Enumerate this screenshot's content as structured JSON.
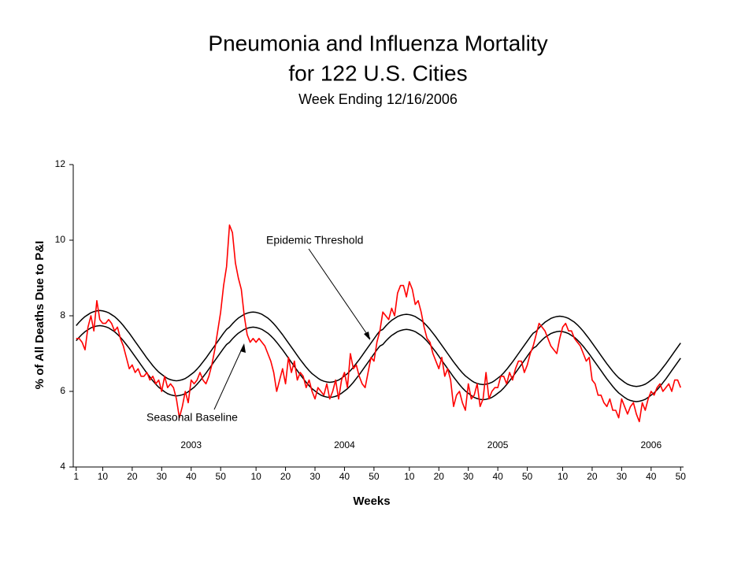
{
  "chart_data": {
    "type": "line",
    "title": [
      "Pneumonia and Influenza Mortality",
      "for 122 U.S. Cities"
    ],
    "subtitle": "Week Ending 12/16/2006",
    "x_label": "Weeks",
    "y_label": "% of All Deaths Due to P&I",
    "x_groups": [
      "2003",
      "2004",
      "2005",
      "2006"
    ],
    "x": [
      1,
      2,
      3,
      4,
      5,
      6,
      7,
      8,
      9,
      10,
      11,
      12,
      13,
      14,
      15,
      16,
      17,
      18,
      19,
      20,
      21,
      22,
      23,
      24,
      25,
      26,
      27,
      28,
      29,
      30,
      31,
      32,
      33,
      34,
      35,
      36,
      37,
      38,
      39,
      40,
      41,
      42,
      43,
      44,
      45,
      46,
      47,
      48,
      49,
      50,
      51,
      52,
      53,
      54,
      55,
      56,
      57,
      58,
      59,
      60,
      61,
      62,
      63,
      64,
      65,
      66,
      67,
      68,
      69,
      70,
      71,
      72,
      73,
      74,
      75,
      76,
      77,
      78,
      79,
      80,
      81,
      82,
      83,
      84,
      85,
      86,
      87,
      88,
      89,
      90,
      91,
      92,
      93,
      94,
      95,
      96,
      97,
      98,
      99,
      100,
      101,
      102,
      103,
      104,
      105,
      106,
      107,
      108,
      109,
      110,
      111,
      112,
      113,
      114,
      115,
      116,
      117,
      118,
      119,
      120,
      121,
      122,
      123,
      124,
      125,
      126,
      127,
      128,
      129,
      130,
      131,
      132,
      133,
      134,
      135,
      136,
      137,
      138,
      139,
      140,
      141,
      142,
      143,
      144,
      145,
      146,
      147,
      148,
      149,
      150,
      151,
      152,
      153,
      154,
      155,
      156,
      157,
      158,
      159,
      160,
      161,
      162,
      163,
      164,
      165,
      166,
      167,
      168,
      169,
      170,
      171,
      172,
      173,
      174,
      175,
      176,
      177,
      178,
      179,
      180,
      181,
      182,
      183,
      184,
      185,
      186,
      187,
      188,
      189,
      190,
      191,
      192,
      193,
      194,
      195,
      196,
      197,
      198,
      199,
      200,
      201,
      202,
      203,
      204,
      205,
      206
    ],
    "xlim": [
      0,
      207
    ],
    "xticks": [
      {
        "value": 1,
        "label": "1"
      },
      {
        "value": 10,
        "label": "10"
      },
      {
        "value": 20,
        "label": "20"
      },
      {
        "value": 30,
        "label": "30"
      },
      {
        "value": 40,
        "label": "40"
      },
      {
        "value": 50,
        "label": "50"
      },
      {
        "value": 62,
        "label": "10"
      },
      {
        "value": 72,
        "label": "20"
      },
      {
        "value": 82,
        "label": "30"
      },
      {
        "value": 92,
        "label": "40"
      },
      {
        "value": 102,
        "label": "50"
      },
      {
        "value": 114,
        "label": "10"
      },
      {
        "value": 124,
        "label": "20"
      },
      {
        "value": 134,
        "label": "30"
      },
      {
        "value": 144,
        "label": "40"
      },
      {
        "value": 154,
        "label": "50"
      },
      {
        "value": 166,
        "label": "10"
      },
      {
        "value": 176,
        "label": "20"
      },
      {
        "value": 186,
        "label": "30"
      },
      {
        "value": 196,
        "label": "40"
      },
      {
        "value": 206,
        "label": "50"
      }
    ],
    "ylim": [
      4,
      12
    ],
    "yticks": [
      4,
      6,
      8,
      10,
      12
    ],
    "grid": false,
    "series": [
      {
        "color": "#ff0000",
        "values": [
          7.4,
          7.4,
          7.3,
          7.1,
          7.7,
          8.0,
          7.6,
          8.4,
          7.9,
          7.8,
          7.8,
          7.9,
          7.8,
          7.6,
          7.7,
          7.4,
          7.2,
          6.9,
          6.6,
          6.7,
          6.5,
          6.6,
          6.4,
          6.4,
          6.5,
          6.3,
          6.4,
          6.2,
          6.3,
          6.0,
          6.4,
          6.1,
          6.2,
          6.1,
          5.8,
          5.3,
          5.6,
          6.0,
          5.7,
          6.3,
          6.2,
          6.3,
          6.5,
          6.3,
          6.2,
          6.4,
          6.7,
          7.1,
          7.6,
          8.1,
          8.8,
          9.3,
          10.4,
          10.2,
          9.4,
          9.0,
          8.7,
          8.0,
          7.5,
          7.3,
          7.4,
          7.3,
          7.4,
          7.3,
          7.2,
          7.0,
          6.8,
          6.5,
          6.0,
          6.3,
          6.6,
          6.2,
          6.9,
          6.5,
          6.8,
          6.3,
          6.5,
          6.4,
          6.1,
          6.3,
          6.0,
          5.8,
          6.1,
          6.0,
          5.9,
          6.2,
          5.8,
          6.0,
          6.3,
          5.8,
          6.3,
          6.5,
          6.1,
          7.0,
          6.6,
          6.7,
          6.4,
          6.2,
          6.1,
          6.5,
          6.9,
          6.8,
          7.3,
          7.6,
          8.1,
          8.0,
          7.9,
          8.2,
          8.0,
          8.6,
          8.8,
          8.8,
          8.5,
          8.9,
          8.7,
          8.3,
          8.4,
          8.1,
          7.7,
          7.4,
          7.3,
          7.0,
          6.8,
          6.6,
          6.9,
          6.4,
          6.6,
          6.3,
          5.6,
          5.9,
          6.0,
          5.7,
          5.5,
          6.2,
          5.8,
          5.9,
          6.2,
          5.6,
          5.8,
          6.5,
          5.8,
          6.0,
          6.1,
          6.1,
          6.4,
          6.4,
          6.2,
          6.5,
          6.3,
          6.6,
          6.8,
          6.8,
          6.5,
          6.7,
          7.0,
          7.2,
          7.5,
          7.8,
          7.7,
          7.6,
          7.4,
          7.2,
          7.1,
          7.0,
          7.4,
          7.7,
          7.8,
          7.6,
          7.6,
          7.4,
          7.3,
          7.2,
          7.0,
          6.8,
          6.9,
          6.3,
          6.2,
          5.9,
          5.9,
          5.7,
          5.6,
          5.8,
          5.5,
          5.5,
          5.3,
          5.8,
          5.6,
          5.4,
          5.6,
          5.7,
          5.4,
          5.2,
          5.7,
          5.5,
          5.8,
          6.0,
          5.9,
          6.1,
          6.2,
          6.0,
          6.1,
          6.2,
          6.0,
          6.3,
          6.3,
          6.1
        ]
      },
      {
        "name": "Epidemic Threshold",
        "color": "#000000",
        "values": [
          7.74,
          7.83,
          7.91,
          7.98,
          8.03,
          8.08,
          8.11,
          8.13,
          8.14,
          8.13,
          8.11,
          8.08,
          8.03,
          7.98,
          7.91,
          7.83,
          7.74,
          7.64,
          7.54,
          7.43,
          7.32,
          7.21,
          7.1,
          6.99,
          6.88,
          6.78,
          6.68,
          6.59,
          6.51,
          6.45,
          6.39,
          6.34,
          6.31,
          6.29,
          6.28,
          6.29,
          6.31,
          6.34,
          6.39,
          6.45,
          6.51,
          6.59,
          6.68,
          6.78,
          6.88,
          6.99,
          7.1,
          7.21,
          7.32,
          7.43,
          7.54,
          7.64,
          7.7,
          7.79,
          7.87,
          7.94,
          7.99,
          8.04,
          8.07,
          8.09,
          8.1,
          8.09,
          8.07,
          8.04,
          7.99,
          7.94,
          7.87,
          7.79,
          7.7,
          7.6,
          7.5,
          7.39,
          7.28,
          7.17,
          7.06,
          6.95,
          6.84,
          6.74,
          6.64,
          6.55,
          6.47,
          6.41,
          6.35,
          6.3,
          6.27,
          6.25,
          6.24,
          6.25,
          6.27,
          6.3,
          6.35,
          6.41,
          6.47,
          6.55,
          6.64,
          6.74,
          6.84,
          6.95,
          7.06,
          7.17,
          7.28,
          7.39,
          7.5,
          7.6,
          7.64,
          7.73,
          7.81,
          7.88,
          7.93,
          7.98,
          8.01,
          8.03,
          8.04,
          8.03,
          8.01,
          7.98,
          7.93,
          7.88,
          7.81,
          7.73,
          7.64,
          7.54,
          7.44,
          7.33,
          7.22,
          7.11,
          7.0,
          6.89,
          6.78,
          6.68,
          6.58,
          6.49,
          6.41,
          6.35,
          6.29,
          6.24,
          6.21,
          6.19,
          6.18,
          6.19,
          6.21,
          6.24,
          6.29,
          6.35,
          6.41,
          6.49,
          6.58,
          6.68,
          6.78,
          6.89,
          7.0,
          7.11,
          7.22,
          7.33,
          7.44,
          7.54,
          7.59,
          7.68,
          7.76,
          7.83,
          7.88,
          7.93,
          7.96,
          7.98,
          7.99,
          7.98,
          7.96,
          7.93,
          7.88,
          7.83,
          7.76,
          7.68,
          7.59,
          7.49,
          7.39,
          7.28,
          7.17,
          7.06,
          6.95,
          6.84,
          6.73,
          6.63,
          6.53,
          6.44,
          6.36,
          6.3,
          6.24,
          6.19,
          6.16,
          6.14,
          6.13,
          6.14,
          6.16,
          6.19,
          6.24,
          6.3,
          6.36,
          6.44,
          6.53,
          6.63,
          6.73,
          6.84,
          6.95,
          7.06,
          7.17,
          7.28
        ]
      },
      {
        "name": "Seasonal Baseline",
        "color": "#000000",
        "values": [
          7.34,
          7.43,
          7.51,
          7.58,
          7.63,
          7.68,
          7.71,
          7.73,
          7.74,
          7.73,
          7.71,
          7.68,
          7.63,
          7.58,
          7.51,
          7.43,
          7.34,
          7.24,
          7.14,
          7.03,
          6.92,
          6.81,
          6.7,
          6.59,
          6.48,
          6.38,
          6.28,
          6.19,
          6.11,
          6.05,
          5.99,
          5.94,
          5.91,
          5.89,
          5.88,
          5.89,
          5.91,
          5.94,
          5.99,
          6.05,
          6.11,
          6.19,
          6.28,
          6.38,
          6.48,
          6.59,
          6.7,
          6.81,
          6.92,
          7.03,
          7.14,
          7.24,
          7.3,
          7.39,
          7.47,
          7.54,
          7.59,
          7.64,
          7.67,
          7.69,
          7.7,
          7.69,
          7.67,
          7.64,
          7.59,
          7.54,
          7.47,
          7.39,
          7.3,
          7.2,
          7.1,
          6.99,
          6.88,
          6.77,
          6.66,
          6.55,
          6.44,
          6.34,
          6.24,
          6.15,
          6.07,
          6.01,
          5.95,
          5.9,
          5.87,
          5.85,
          5.84,
          5.85,
          5.87,
          5.9,
          5.95,
          6.01,
          6.07,
          6.15,
          6.24,
          6.34,
          6.44,
          6.55,
          6.66,
          6.77,
          6.88,
          6.99,
          7.1,
          7.2,
          7.24,
          7.33,
          7.41,
          7.48,
          7.53,
          7.58,
          7.61,
          7.63,
          7.64,
          7.63,
          7.61,
          7.58,
          7.53,
          7.48,
          7.41,
          7.33,
          7.24,
          7.14,
          7.04,
          6.93,
          6.82,
          6.71,
          6.6,
          6.49,
          6.38,
          6.28,
          6.18,
          6.09,
          6.01,
          5.95,
          5.89,
          5.84,
          5.81,
          5.79,
          5.78,
          5.79,
          5.81,
          5.84,
          5.89,
          5.95,
          6.01,
          6.09,
          6.18,
          6.28,
          6.38,
          6.49,
          6.6,
          6.71,
          6.82,
          6.93,
          7.04,
          7.14,
          7.19,
          7.28,
          7.36,
          7.43,
          7.48,
          7.53,
          7.56,
          7.58,
          7.59,
          7.58,
          7.56,
          7.53,
          7.48,
          7.43,
          7.36,
          7.28,
          7.19,
          7.09,
          6.99,
          6.88,
          6.77,
          6.66,
          6.55,
          6.44,
          6.33,
          6.23,
          6.13,
          6.04,
          5.96,
          5.9,
          5.84,
          5.79,
          5.76,
          5.74,
          5.73,
          5.74,
          5.76,
          5.79,
          5.84,
          5.9,
          5.96,
          6.04,
          6.13,
          6.23,
          6.33,
          6.44,
          6.55,
          6.66,
          6.77,
          6.88
        ]
      }
    ]
  }
}
